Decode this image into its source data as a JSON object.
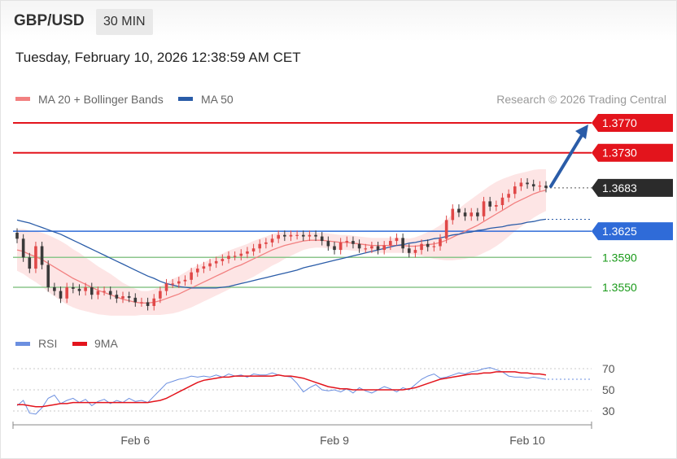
{
  "header": {
    "symbol": "GBP/USD",
    "timeframe": "30 MIN",
    "timestamp": "Tuesday, February 10, 2026 12:38:59 AM CET"
  },
  "legend": {
    "ma20": "MA 20 + Bollinger Bands",
    "ma50": "MA 50",
    "rsi": "RSI",
    "rsi_ma": "9MA",
    "credit": "Research © 2026 Trading Central"
  },
  "colors": {
    "ma20": "#f28080",
    "band": "#fde0e0",
    "ma50": "#2a5ca8",
    "resistance": "#e3141c",
    "pivot": "#2f6bd8",
    "support": "#8bc68b",
    "support_text": "#1a9a1a",
    "candle_up": "#e04848",
    "candle_down": "#3a3a3a",
    "rsi": "#6b8fe0",
    "rsi_ma": "#e3141c",
    "arrow": "#2a5ca8",
    "current_tag": "#2b2b2b"
  },
  "chart_data": [
    {
      "type": "line",
      "name": "price",
      "ylim": [
        1.353,
        1.379
      ],
      "x_ticks": [
        "Feb 6",
        "Feb 9",
        "Feb 10"
      ],
      "x_tick_index": [
        19,
        51,
        82
      ],
      "levels": [
        {
          "kind": "resistance",
          "value": 1.377,
          "label": "1.3770"
        },
        {
          "kind": "resistance",
          "value": 1.373,
          "label": "1.3730"
        },
        {
          "kind": "current",
          "value": 1.3683,
          "label": "1.3683"
        },
        {
          "kind": "pivot",
          "value": 1.3625,
          "label": "1.3625"
        },
        {
          "kind": "support",
          "value": 1.359,
          "label": "1.3590"
        },
        {
          "kind": "support",
          "value": 1.355,
          "label": "1.3550"
        }
      ],
      "forecast_target": 1.377,
      "closes": [
        1.3615,
        1.359,
        1.3575,
        1.3605,
        1.358,
        1.355,
        1.3545,
        1.3535,
        1.355,
        1.3548,
        1.3545,
        1.355,
        1.354,
        1.3545,
        1.3545,
        1.354,
        1.3535,
        1.3538,
        1.3536,
        1.353,
        1.353,
        1.3525,
        1.3535,
        1.3545,
        1.3555,
        1.3555,
        1.3558,
        1.356,
        1.357,
        1.3575,
        1.3578,
        1.3582,
        1.3585,
        1.3588,
        1.3592,
        1.3592,
        1.3595,
        1.3598,
        1.3602,
        1.3608,
        1.361,
        1.3615,
        1.362,
        1.3618,
        1.362,
        1.362,
        1.3618,
        1.362,
        1.3618,
        1.3612,
        1.3605,
        1.36,
        1.361,
        1.3612,
        1.3608,
        1.3602,
        1.3602,
        1.3605,
        1.36,
        1.3606,
        1.3612,
        1.3616,
        1.3602,
        1.3596,
        1.36,
        1.3608,
        1.3604,
        1.3605,
        1.3615,
        1.364,
        1.3655,
        1.365,
        1.3645,
        1.365,
        1.3645,
        1.3665,
        1.3658,
        1.366,
        1.367,
        1.3675,
        1.3685,
        1.369,
        1.3688,
        1.3685,
        1.3686,
        1.3683
      ],
      "ma20": [
        1.36,
        1.3598,
        1.3594,
        1.3591,
        1.3587,
        1.3582,
        1.3577,
        1.3572,
        1.3567,
        1.3562,
        1.3558,
        1.3554,
        1.355,
        1.3546,
        1.3543,
        1.354,
        1.3537,
        1.3534,
        1.3532,
        1.353,
        1.3529,
        1.3529,
        1.353,
        1.3532,
        1.3535,
        1.3538,
        1.3541,
        1.3545,
        1.3549,
        1.3553,
        1.3557,
        1.3561,
        1.3565,
        1.3569,
        1.3573,
        1.3577,
        1.358,
        1.3584,
        1.3588,
        1.3592,
        1.3596,
        1.36,
        1.3603,
        1.3606,
        1.3608,
        1.361,
        1.3612,
        1.3613,
        1.3613,
        1.3613,
        1.3612,
        1.3611,
        1.361,
        1.361,
        1.3609,
        1.3608,
        1.3607,
        1.3606,
        1.3606,
        1.3606,
        1.3606,
        1.3606,
        1.3606,
        1.3605,
        1.3605,
        1.3606,
        1.3607,
        1.3608,
        1.361,
        1.3613,
        1.3617,
        1.3621,
        1.3625,
        1.3629,
        1.3633,
        1.3638,
        1.3643,
        1.3648,
        1.3653,
        1.3658,
        1.3663,
        1.3667,
        1.3671,
        1.3675,
        1.3678,
        1.368
      ],
      "ma50": [
        1.364,
        1.3638,
        1.3636,
        1.3633,
        1.363,
        1.3627,
        1.3624,
        1.3621,
        1.3617,
        1.3613,
        1.3609,
        1.3605,
        1.3601,
        1.3597,
        1.3593,
        1.3589,
        1.3585,
        1.3581,
        1.3577,
        1.3573,
        1.3569,
        1.3565,
        1.3562,
        1.3558,
        1.3555,
        1.3553,
        1.3551,
        1.355,
        1.3549,
        1.3549,
        1.3549,
        1.3549,
        1.3549,
        1.355,
        1.3551,
        1.3553,
        1.3555,
        1.3557,
        1.3559,
        1.3561,
        1.3563,
        1.3565,
        1.3567,
        1.3569,
        1.3571,
        1.3573,
        1.3576,
        1.3578,
        1.358,
        1.3582,
        1.3584,
        1.3586,
        1.3588,
        1.359,
        1.3592,
        1.3594,
        1.3596,
        1.3598,
        1.36,
        1.3602,
        1.3604,
        1.3606,
        1.3607,
        1.3609,
        1.361,
        1.3612,
        1.3613,
        1.3615,
        1.3616,
        1.3618,
        1.362,
        1.3621,
        1.3623,
        1.3624,
        1.3626,
        1.3627,
        1.3629,
        1.363,
        1.3631,
        1.3633,
        1.3634,
        1.3635,
        1.3637,
        1.3638,
        1.364,
        1.3641
      ],
      "band_width": [
        0.0028,
        0.003,
        0.0032,
        0.0034,
        0.0036,
        0.0038,
        0.0039,
        0.004,
        0.004,
        0.0039,
        0.0038,
        0.0036,
        0.0034,
        0.0032,
        0.003,
        0.0028,
        0.0025,
        0.0022,
        0.002,
        0.0018,
        0.0016,
        0.0016,
        0.0017,
        0.0019,
        0.0021,
        0.0023,
        0.0024,
        0.0025,
        0.0026,
        0.0026,
        0.0026,
        0.0026,
        0.0026,
        0.0026,
        0.0026,
        0.0025,
        0.0025,
        0.0024,
        0.0024,
        0.0023,
        0.0022,
        0.0021,
        0.002,
        0.0018,
        0.0016,
        0.0014,
        0.0012,
        0.0011,
        0.001,
        0.001,
        0.001,
        0.001,
        0.001,
        0.001,
        0.001,
        0.001,
        0.001,
        0.001,
        0.001,
        0.001,
        0.001,
        0.001,
        0.001,
        0.001,
        0.0012,
        0.0014,
        0.0017,
        0.002,
        0.0023,
        0.0027,
        0.0031,
        0.0034,
        0.0037,
        0.0039,
        0.0041,
        0.0042,
        0.0043,
        0.0043,
        0.0042,
        0.004,
        0.0038,
        0.0036,
        0.0034,
        0.0032,
        0.003,
        0.0028
      ]
    },
    {
      "type": "line",
      "name": "RSI",
      "ylim": [
        20,
        80
      ],
      "ticks": [
        70,
        50,
        30
      ],
      "rsi": [
        35,
        40,
        28,
        27,
        33,
        42,
        45,
        37,
        40,
        42,
        38,
        41,
        35,
        39,
        41,
        37,
        40,
        38,
        42,
        39,
        40,
        38,
        44,
        50,
        56,
        58,
        60,
        61,
        63,
        62,
        63,
        62,
        64,
        62,
        65,
        63,
        64,
        62,
        65,
        64,
        64,
        66,
        64,
        63,
        62,
        56,
        48,
        52,
        55,
        50,
        49,
        50,
        48,
        51,
        47,
        52,
        49,
        47,
        50,
        53,
        51,
        48,
        52,
        50,
        55,
        60,
        63,
        65,
        61,
        62,
        64,
        66,
        65,
        67,
        68,
        70,
        71,
        69,
        67,
        63,
        62,
        62,
        61,
        62,
        61,
        60
      ],
      "rsi_ma": [
        36,
        36,
        35,
        34,
        34,
        35,
        36,
        37,
        37,
        38,
        38,
        38,
        38,
        38,
        38,
        38,
        38,
        38,
        38,
        38,
        38,
        38,
        39,
        40,
        42,
        45,
        48,
        51,
        54,
        57,
        59,
        60,
        61,
        62,
        62,
        63,
        63,
        63,
        63,
        63,
        63,
        63,
        64,
        63,
        63,
        62,
        61,
        59,
        57,
        55,
        53,
        52,
        51,
        51,
        50,
        50,
        50,
        50,
        50,
        50,
        50,
        50,
        50,
        51,
        52,
        54,
        56,
        58,
        60,
        61,
        62,
        63,
        64,
        65,
        65,
        66,
        66,
        67,
        67,
        67,
        67,
        66,
        66,
        65,
        65,
        64
      ]
    }
  ]
}
